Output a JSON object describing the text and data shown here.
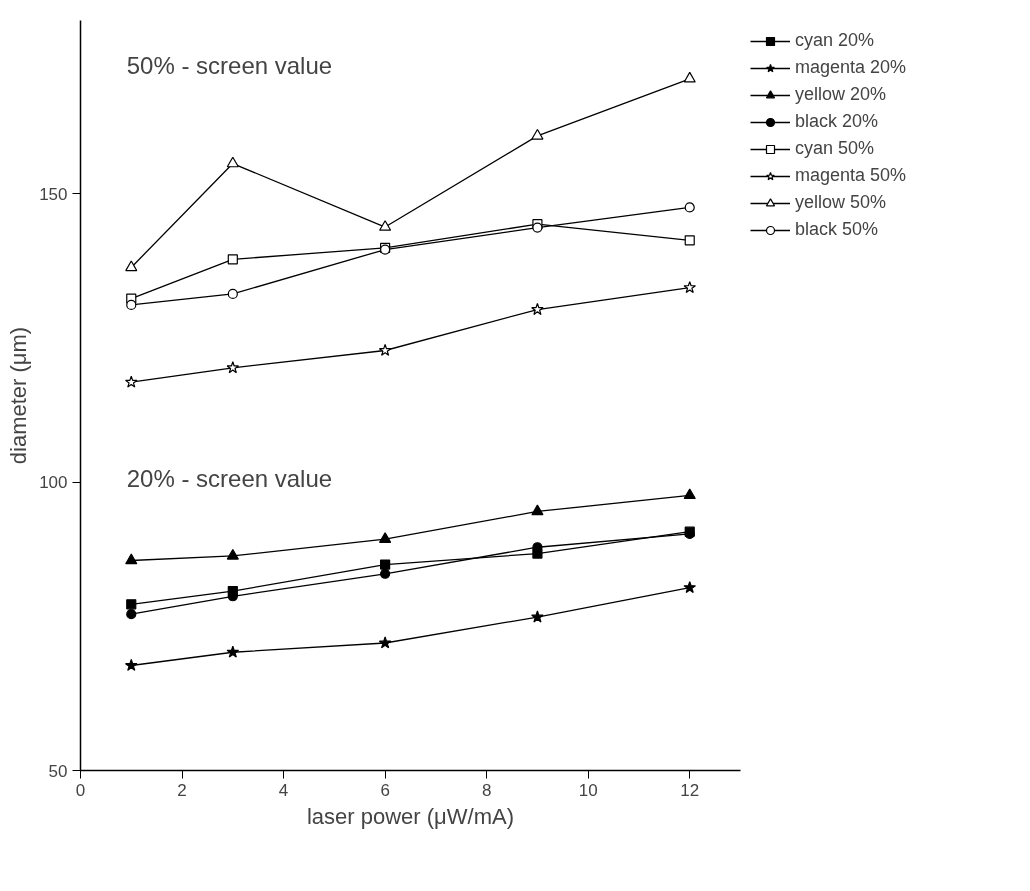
{
  "chart_data": {
    "type": "line",
    "xlabel": "laser power (μW/mA)",
    "ylabel": "diameter (μm)",
    "x": [
      1,
      3,
      6,
      9,
      12
    ],
    "xlim": [
      0,
      13
    ],
    "xticks": [
      0,
      2,
      4,
      6,
      8,
      10,
      12
    ],
    "ylim": [
      50,
      180
    ],
    "yticks": [
      50,
      100,
      150
    ],
    "grid": false,
    "legend": "top right",
    "line_style": "solid",
    "annotations": [
      "50% - screen value",
      "20% - screen value"
    ],
    "series": [
      {
        "name": "cyan 20%",
        "color": "#000000",
        "marker": "square",
        "values": [
          78.8,
          81.1,
          85.7,
          87.6,
          91.4
        ]
      },
      {
        "name": "magenta 20%",
        "color": "#000000",
        "marker": "star",
        "values": [
          68.2,
          70.5,
          72.1,
          76.6,
          81.7
        ]
      },
      {
        "name": "yellow 20%",
        "color": "#000000",
        "marker": "triangle",
        "values": [
          86.4,
          87.2,
          90.1,
          94.9,
          97.7
        ]
      },
      {
        "name": "black 20%",
        "color": "#000000",
        "marker": "circle",
        "values": [
          77.1,
          80.2,
          84.1,
          88.7,
          91.0
        ]
      },
      {
        "name": "cyan 50%",
        "color": "#000000",
        "marker": "square_open",
        "values": [
          131.8,
          138.6,
          140.6,
          144.7,
          141.9
        ]
      },
      {
        "name": "magenta 50%",
        "color": "#000000",
        "marker": "star_open",
        "values": [
          117.3,
          119.8,
          122.8,
          129.9,
          133.7
        ]
      },
      {
        "name": "yellow 50%",
        "color": "#000000",
        "marker": "triangle_open",
        "values": [
          137.2,
          155.2,
          144.2,
          160.0,
          169.9
        ]
      },
      {
        "name": "black 50%",
        "color": "#000000",
        "marker": "circle_open",
        "values": [
          130.7,
          132.6,
          140.3,
          144.1,
          147.6
        ]
      }
    ]
  }
}
